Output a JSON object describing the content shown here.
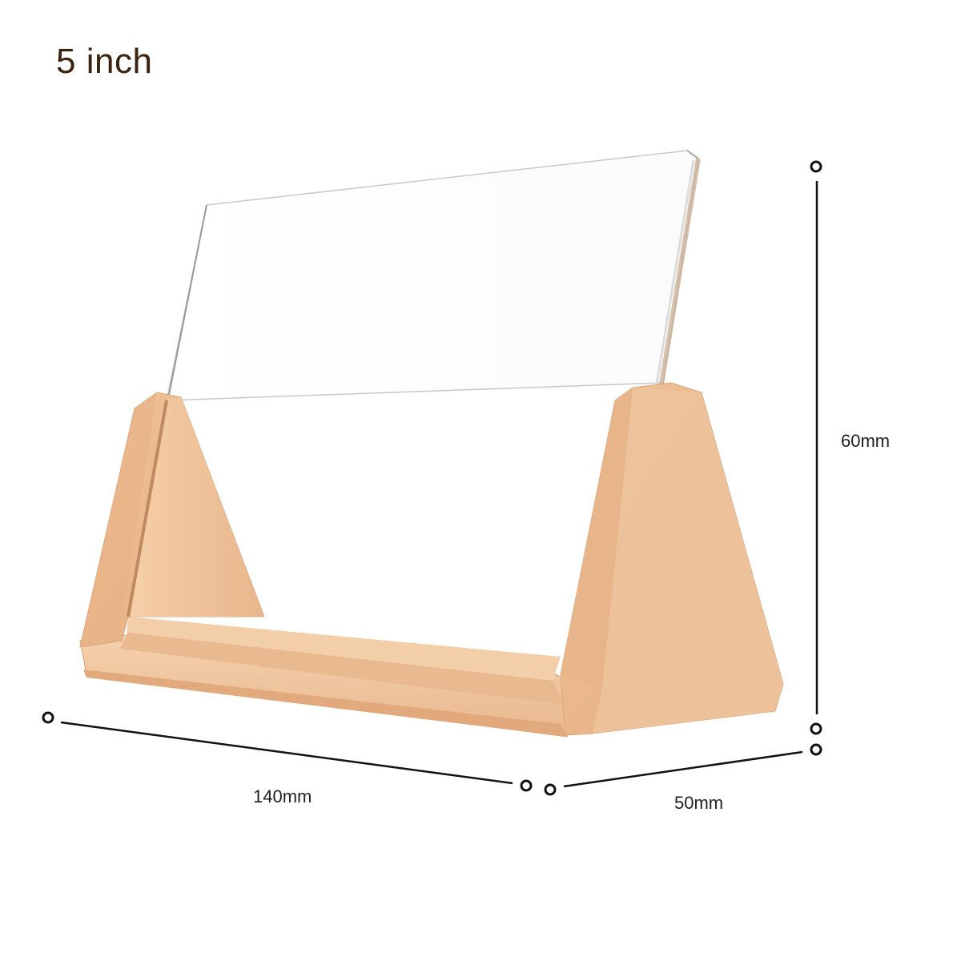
{
  "product": {
    "title": "5 inch",
    "dimensions": {
      "length": "140mm",
      "depth": "50mm",
      "height": "60mm"
    }
  },
  "colors": {
    "wood_light": "#f2c9a0",
    "wood_mid": "#e6b088",
    "wood_dark": "#d39a70",
    "wood_shadow": "#c98c62",
    "acrylic_edge": "#b8b8b8",
    "dimension_line": "#111111",
    "title_text": "#3a2410"
  }
}
